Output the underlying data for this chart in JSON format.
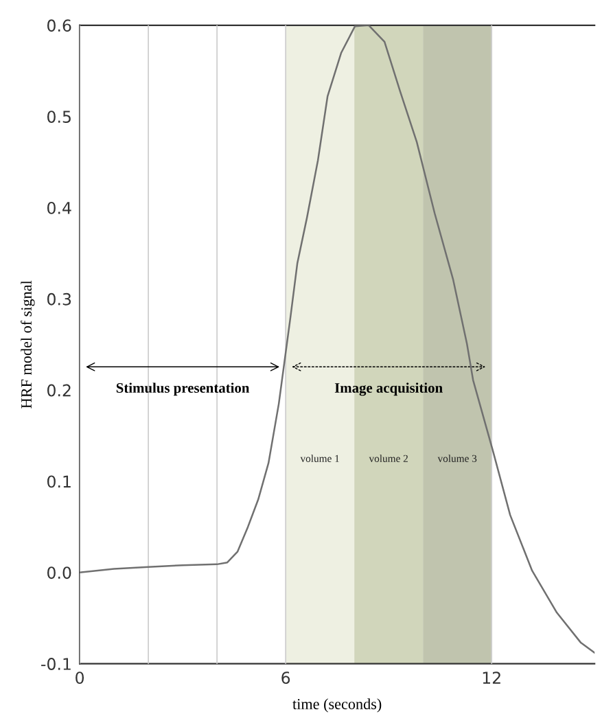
{
  "chart_data": {
    "type": "line",
    "xlabel": "time (seconds)",
    "ylabel": "HRF model of signal",
    "xlim": [
      0,
      15
    ],
    "ylim": [
      -0.1,
      0.6
    ],
    "xticks": [
      0,
      {
        "value": 2,
        "label": null
      },
      {
        "value": 4,
        "label": null
      },
      6,
      12
    ],
    "yticks": [
      -0.1,
      {
        "value": 0,
        "label": "0.0"
      },
      0.1,
      0.2,
      0.3,
      0.4,
      0.5,
      0.6
    ],
    "grid": "x",
    "series": [
      {
        "color": "#707070",
        "x": [
          0,
          1,
          2,
          3,
          4,
          4.3,
          4.6,
          4.9,
          5.2,
          5.5,
          5.8,
          6.14,
          6.34,
          6.62,
          6.94,
          7.22,
          7.62,
          8.02,
          8.42,
          8.88,
          9.34,
          9.82,
          10.34,
          10.88,
          11.28,
          11.46,
          12.04,
          12.54,
          13.18,
          13.9,
          14.6,
          15
        ],
        "values": [
          0.0,
          0.004,
          0.006,
          0.008,
          0.009,
          0.011,
          0.023,
          0.05,
          0.08,
          0.12,
          0.185,
          0.28,
          0.339,
          0.389,
          0.452,
          0.522,
          0.57,
          0.599,
          0.6,
          0.582,
          0.527,
          0.472,
          0.394,
          0.321,
          0.251,
          0.211,
          0.133,
          0.063,
          0.002,
          -0.044,
          -0.077,
          -0.088
        ]
      }
    ],
    "bands": [
      {
        "axis": "x",
        "from": 6,
        "to": 8,
        "label": "volume 1",
        "color": "#eef0e2"
      },
      {
        "axis": "x",
        "from": 8,
        "to": 10,
        "label": "volume 2",
        "color": "#d1d6bb"
      },
      {
        "axis": "x",
        "from": 10,
        "to": 12,
        "label": "volume 3",
        "color": "#c0c4ae"
      }
    ],
    "annotations": [
      "Stimulus presentation",
      "Image acquisition"
    ]
  }
}
